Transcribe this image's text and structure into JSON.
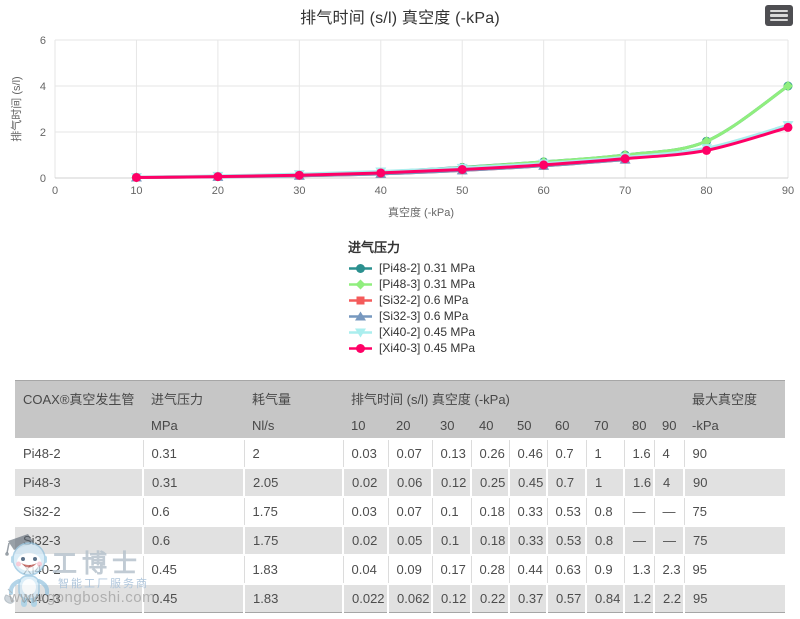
{
  "chart": {
    "title": "排气时间 (s/l) 真空度 (-kPa)",
    "y_axis_title": "排气时间 (s/l)",
    "x_axis_title": "真空度 (-kPa)",
    "legend_title": "进气压力",
    "context_menu_icon": "hamburger-menu"
  },
  "chart_data": {
    "type": "line",
    "title": "排气时间 (s/l) 真空度 (-kPa)",
    "xlabel": "真空度 (-kPa)",
    "ylabel": "排气时间 (s/l)",
    "xlim": [
      0,
      90
    ],
    "ylim": [
      0,
      6
    ],
    "x_ticks": [
      0,
      10,
      20,
      30,
      40,
      50,
      60,
      70,
      80,
      90
    ],
    "y_ticks": [
      0,
      2,
      4,
      6
    ],
    "grid": true,
    "legend_position": "bottom-left",
    "legend_title": "进气压力",
    "x": [
      10,
      20,
      30,
      40,
      50,
      60,
      70,
      80,
      90
    ],
    "series": [
      {
        "name": "[Pi48-2] 0.31 MPa",
        "color": "#2b908f",
        "marker": "circle",
        "values": [
          0.03,
          0.07,
          0.13,
          0.26,
          0.46,
          0.7,
          1,
          1.6,
          4
        ]
      },
      {
        "name": "[Pi48-3] 0.31 MPa",
        "color": "#90ee7e",
        "marker": "diamond",
        "values": [
          0.02,
          0.06,
          0.12,
          0.25,
          0.45,
          0.7,
          1,
          1.6,
          4
        ]
      },
      {
        "name": "[Si32-2] 0.6 MPa",
        "color": "#f45b5b",
        "marker": "square",
        "values": [
          0.03,
          0.07,
          0.1,
          0.18,
          0.33,
          0.53,
          0.8
        ]
      },
      {
        "name": "[Si32-3] 0.6 MPa",
        "color": "#7798bf",
        "marker": "triangle",
        "values": [
          0.02,
          0.05,
          0.1,
          0.18,
          0.33,
          0.53,
          0.8
        ]
      },
      {
        "name": "[Xi40-2] 0.45 MPa",
        "color": "#aaeeee",
        "marker": "triangle-down",
        "values": [
          0.04,
          0.09,
          0.17,
          0.28,
          0.44,
          0.63,
          0.9,
          1.3,
          2.3
        ]
      },
      {
        "name": "[Xi40-3] 0.45 MPa",
        "color": "#ff0066",
        "marker": "circle",
        "values": [
          0.022,
          0.062,
          0.12,
          0.22,
          0.37,
          0.57,
          0.84,
          1.2,
          2.2
        ]
      }
    ]
  },
  "table": {
    "columns": [
      {
        "title": "COAX®真空发生管",
        "sub": ""
      },
      {
        "title": "进气压力",
        "sub": "MPa"
      },
      {
        "title": "耗气量",
        "sub": "Nl/s"
      },
      {
        "title": "排气时间 (s/l) 真空度 (-kPa)",
        "subs": [
          "10",
          "20",
          "30",
          "40",
          "50",
          "60",
          "70",
          "80",
          "90"
        ]
      },
      {
        "title": "最大真空度",
        "sub": "-kPa"
      }
    ],
    "rows": [
      [
        "Pi48-2",
        "0.31",
        "2",
        "0.03",
        "0.07",
        "0.13",
        "0.26",
        "0.46",
        "0.7",
        "1",
        "1.6",
        "4",
        "90"
      ],
      [
        "Pi48-3",
        "0.31",
        "2.05",
        "0.02",
        "0.06",
        "0.12",
        "0.25",
        "0.45",
        "0.7",
        "1",
        "1.6",
        "4",
        "90"
      ],
      [
        "Si32-2",
        "0.6",
        "1.75",
        "0.03",
        "0.07",
        "0.1",
        "0.18",
        "0.33",
        "0.53",
        "0.8",
        "—",
        "—",
        "75"
      ],
      [
        "Si32-3",
        "0.6",
        "1.75",
        "0.02",
        "0.05",
        "0.1",
        "0.18",
        "0.33",
        "0.53",
        "0.8",
        "—",
        "—",
        "75"
      ],
      [
        "Xi40-2",
        "0.45",
        "1.83",
        "0.04",
        "0.09",
        "0.17",
        "0.28",
        "0.44",
        "0.63",
        "0.9",
        "1.3",
        "2.3",
        "95"
      ],
      [
        "Xi40-3",
        "0.45",
        "1.83",
        "0.022",
        "0.062",
        "0.12",
        "0.22",
        "0.37",
        "0.57",
        "0.84",
        "1.2",
        "2.2",
        "95"
      ]
    ]
  },
  "watermark": {
    "mascot_icon": "robot-mascot",
    "brand": "工博士",
    "slogan": "智能工厂服务商",
    "url": "www.gongboshi.com"
  }
}
